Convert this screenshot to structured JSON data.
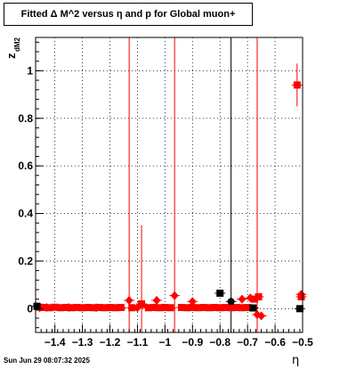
{
  "title": "Fitted Δ M^2 versus η and p for Global muon+",
  "footer": "Sun Jun 29 08:07:32 2025",
  "chart_data": {
    "type": "scatter",
    "title": "Fitted Δ M^2 versus η and p for Global muon+",
    "xlabel": "η",
    "ylabel": "z",
    "ylabel_sub": "dM2",
    "xlim": [
      -1.47,
      -0.5
    ],
    "ylim": [
      -0.1,
      1.14
    ],
    "grid": true,
    "xticks": [
      -1.4,
      -1.3,
      -1.2,
      -1.1,
      -1.0,
      -0.9,
      -0.8,
      -0.7,
      -0.6,
      -0.5
    ],
    "xtick_labels": [
      "−1.4",
      "−1.3",
      "−1.2",
      "−1.1",
      "−1",
      "−0.9",
      "−0.8",
      "−0.7",
      "−0.6",
      "−0.5"
    ],
    "yticks": [
      0,
      0.2,
      0.4,
      0.6,
      0.8,
      1.0
    ],
    "ytick_labels": [
      "0",
      "0.2",
      "0.4",
      "0.6",
      "0.8",
      "1"
    ],
    "colors": {
      "red": "#ff0000",
      "black": "#000000"
    },
    "series": [
      {
        "color": "#ff0000",
        "marker": "square",
        "points": [
          {
            "x": -1.455,
            "y": 0.006,
            "err": 0.004
          },
          {
            "x": -1.44,
            "y": 0.005,
            "err": 0.004
          },
          {
            "x": -1.42,
            "y": 0.004,
            "err": 0.004
          },
          {
            "x": -1.4,
            "y": 0.006,
            "err": 0.004
          },
          {
            "x": -1.38,
            "y": 0.004,
            "err": 0.004
          },
          {
            "x": -1.36,
            "y": 0.005,
            "err": 0.004
          },
          {
            "x": -1.34,
            "y": 0.004,
            "err": 0.004
          },
          {
            "x": -1.32,
            "y": 0.005,
            "err": 0.004
          },
          {
            "x": -1.3,
            "y": 0.004,
            "err": 0.004
          },
          {
            "x": -1.28,
            "y": 0.005,
            "err": 0.004
          },
          {
            "x": -1.26,
            "y": 0.004,
            "err": 0.004
          },
          {
            "x": -1.24,
            "y": 0.005,
            "err": 0.004
          },
          {
            "x": -1.22,
            "y": 0.004,
            "err": 0.004
          },
          {
            "x": -1.2,
            "y": 0.005,
            "err": 0.004
          },
          {
            "x": -1.18,
            "y": 0.004,
            "err": 0.004
          },
          {
            "x": -1.16,
            "y": 0.005,
            "err": 0.004
          },
          {
            "x": -1.12,
            "y": 0.004,
            "err": 0.004
          },
          {
            "x": -1.085,
            "y": 0.02,
            "err": 0.33
          },
          {
            "x": -1.06,
            "y": 0.004,
            "err": 0.004
          },
          {
            "x": -1.04,
            "y": 0.005,
            "err": 0.004
          },
          {
            "x": -1.02,
            "y": 0.004,
            "err": 0.004
          },
          {
            "x": -1.0,
            "y": 0.005,
            "err": 0.004
          },
          {
            "x": -0.98,
            "y": 0.004,
            "err": 0.004
          },
          {
            "x": -0.94,
            "y": 0.005,
            "err": 0.004
          },
          {
            "x": -0.92,
            "y": 0.004,
            "err": 0.004
          },
          {
            "x": -0.9,
            "y": 0.005,
            "err": 0.004
          },
          {
            "x": -0.88,
            "y": 0.004,
            "err": 0.004
          },
          {
            "x": -0.86,
            "y": 0.005,
            "err": 0.004
          },
          {
            "x": -0.84,
            "y": 0.004,
            "err": 0.004
          },
          {
            "x": -0.82,
            "y": 0.005,
            "err": 0.004
          },
          {
            "x": -0.8,
            "y": 0.004,
            "err": 0.004
          },
          {
            "x": -0.78,
            "y": 0.005,
            "err": 0.004
          },
          {
            "x": -0.76,
            "y": 0.004,
            "err": 0.004
          },
          {
            "x": -0.74,
            "y": 0.005,
            "err": 0.004
          },
          {
            "x": -0.72,
            "y": 0.004,
            "err": 0.004
          },
          {
            "x": -0.7,
            "y": 0.005,
            "err": 0.004
          },
          {
            "x": -0.675,
            "y": 0.04,
            "err": 0.004
          },
          {
            "x": -0.66,
            "y": 0.05,
            "err": 0.004
          },
          {
            "x": -0.52,
            "y": 0.94,
            "err": 0.09
          },
          {
            "x": -0.505,
            "y": 0.05,
            "err": 0.004
          }
        ]
      },
      {
        "color": "#ff0000",
        "marker": "diamond",
        "points": [
          {
            "x": -1.455,
            "y": 0.004,
            "err": 0.004
          },
          {
            "x": -1.43,
            "y": 0.005,
            "err": 0.004
          },
          {
            "x": -1.35,
            "y": 0.005,
            "err": 0.004
          },
          {
            "x": -1.25,
            "y": 0.004,
            "err": 0.004
          },
          {
            "x": -1.13,
            "y": 0.035,
            "err": 1.3
          },
          {
            "x": -1.1,
            "y": 0.004,
            "err": 0.004
          },
          {
            "x": -1.03,
            "y": 0.035,
            "err": 0.004
          },
          {
            "x": -0.965,
            "y": 0.055,
            "err": 1.3
          },
          {
            "x": -0.9,
            "y": 0.03,
            "err": 0.004
          },
          {
            "x": -0.72,
            "y": 0.04,
            "err": 0.004
          },
          {
            "x": -0.69,
            "y": 0.045,
            "err": 0.004
          },
          {
            "x": -0.665,
            "y": -0.025,
            "err": 1.3
          },
          {
            "x": -0.65,
            "y": -0.03,
            "err": 0.004
          },
          {
            "x": -0.505,
            "y": 0.06,
            "err": 0.004
          }
        ]
      },
      {
        "color": "#000000",
        "marker": "square",
        "points": [
          {
            "x": -1.465,
            "y": 0.01,
            "err": 0.004
          },
          {
            "x": -0.8,
            "y": 0.065,
            "err": 0.004
          },
          {
            "x": -0.68,
            "y": 0.003,
            "err": 0.004
          },
          {
            "x": -0.51,
            "y": 0.0,
            "err": 0.004
          }
        ]
      },
      {
        "color": "#000000",
        "marker": "circle",
        "points": [
          {
            "x": -0.76,
            "y": 0.03,
            "err": 1.3
          }
        ]
      }
    ]
  }
}
